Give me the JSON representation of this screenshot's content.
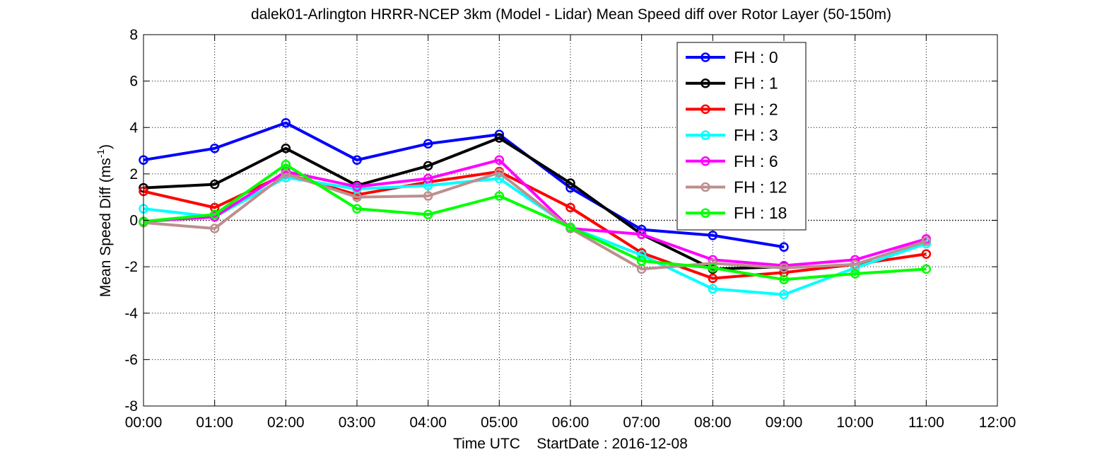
{
  "chart_data": {
    "type": "line",
    "title": "dalek01-Arlington HRRR-NCEP 3km (Model - Lidar) Mean Speed diff over Rotor Layer (50-150m)",
    "xlabel": "Time UTC    StartDate : 2016-12-08",
    "ylabel": "Mean Speed Diff (ms",
    "ylabel_sup": "-1",
    "ylabel_close": ")",
    "x_ticks": [
      "00:00",
      "01:00",
      "02:00",
      "03:00",
      "04:00",
      "05:00",
      "06:00",
      "07:00",
      "08:00",
      "09:00",
      "10:00",
      "11:00",
      "12:00"
    ],
    "y_ticks": [
      "-8",
      "-6",
      "-4",
      "-2",
      "0",
      "2",
      "4",
      "6",
      "8"
    ],
    "xlim": [
      0,
      12
    ],
    "ylim": [
      -8,
      8
    ],
    "grid": true,
    "legend_position": "top-right",
    "series": [
      {
        "name": "FH : 0",
        "color": "#0000ff",
        "x": [
          0,
          1,
          2,
          3,
          4,
          5,
          6,
          7,
          8,
          9
        ],
        "y": [
          2.6,
          3.1,
          4.2,
          2.6,
          3.3,
          3.7,
          1.4,
          -0.4,
          -0.65,
          -1.15
        ]
      },
      {
        "name": "FH : 1",
        "color": "#000000",
        "x": [
          0,
          1,
          2,
          3,
          4,
          5,
          6,
          7,
          8,
          9
        ],
        "y": [
          1.4,
          1.55,
          3.1,
          1.5,
          2.35,
          3.55,
          1.6,
          -0.6,
          -2.1,
          -2.0
        ]
      },
      {
        "name": "FH : 2",
        "color": "#ff0000",
        "x": [
          0,
          1,
          2,
          3,
          4,
          5,
          6,
          7,
          8,
          9,
          10,
          11
        ],
        "y": [
          1.25,
          0.55,
          2.0,
          1.1,
          1.65,
          2.1,
          0.55,
          -1.4,
          -2.5,
          -2.25,
          -1.9,
          -1.45
        ]
      },
      {
        "name": "FH : 3",
        "color": "#00ffff",
        "x": [
          0,
          1,
          2,
          3,
          4,
          5,
          6,
          7,
          8,
          9,
          10,
          11
        ],
        "y": [
          0.5,
          0.15,
          1.85,
          1.35,
          1.5,
          1.8,
          -0.3,
          -1.5,
          -2.95,
          -3.2,
          -2.05,
          -1.0
        ]
      },
      {
        "name": "FH : 6",
        "color": "#ff00ff",
        "x": [
          0,
          1,
          2,
          3,
          4,
          5,
          6,
          7,
          8,
          9,
          10,
          11
        ],
        "y": [
          -0.05,
          0.15,
          2.1,
          1.45,
          1.8,
          2.6,
          -0.35,
          -0.6,
          -1.7,
          -1.95,
          -1.7,
          -0.8
        ]
      },
      {
        "name": "FH : 12",
        "color": "#bc8f8f",
        "x": [
          0,
          1,
          2,
          3,
          4,
          5,
          6,
          7,
          8,
          9,
          10,
          11
        ],
        "y": [
          -0.1,
          -0.35,
          2.0,
          1.0,
          1.05,
          2.05,
          -0.35,
          -2.1,
          -1.85,
          -2.05,
          -1.9,
          -0.9
        ]
      },
      {
        "name": "FH : 18",
        "color": "#00ff00",
        "x": [
          0,
          1,
          2,
          3,
          4,
          5,
          6,
          7,
          8,
          9,
          10,
          11
        ],
        "y": [
          -0.05,
          0.25,
          2.4,
          0.5,
          0.25,
          1.05,
          -0.3,
          -1.75,
          -2.05,
          -2.55,
          -2.3,
          -2.1
        ]
      }
    ]
  }
}
